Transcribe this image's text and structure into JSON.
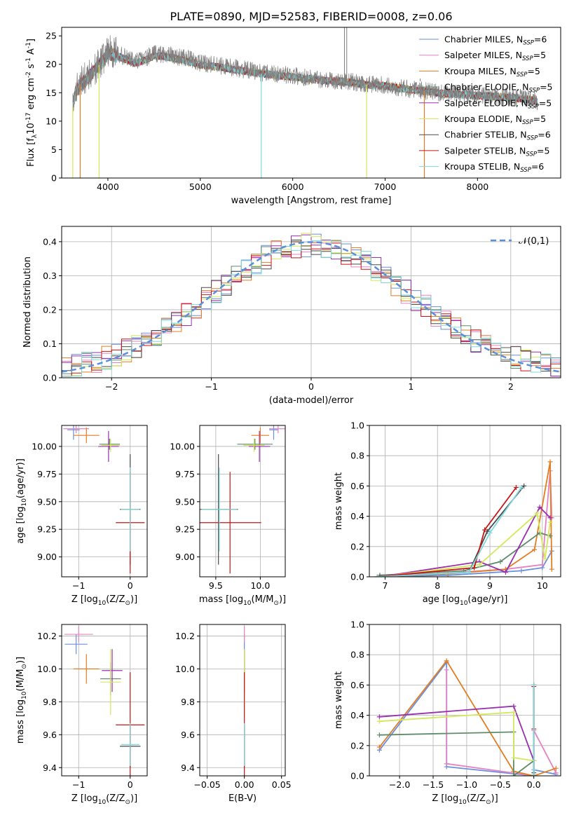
{
  "title": "PLATE=0890, MJD=52583, FIBERID=0008, z=0.06",
  "models": [
    {
      "name": "Chabrier MILES, N$_{SSP}$=6",
      "label": "Chabrier MILES, N",
      "n": "6",
      "color": "#6a8fdc"
    },
    {
      "name": "Salpeter MILES, N$_{SSP}$=5",
      "label": "Salpeter MILES, N",
      "n": "5",
      "color": "#e583c2"
    },
    {
      "name": "Kroupa MILES, N$_{SSP}$=5",
      "label": "Kroupa MILES, N",
      "n": "5",
      "color": "#e27d21"
    },
    {
      "name": "Chabrier ELODIE, N$_{SSP}$=5",
      "label": "Chabrier ELODIE, N",
      "n": "5",
      "color": "#5f8c6a"
    },
    {
      "name": "Salpeter ELODIE, N$_{SSP}$=5",
      "label": "Salpeter ELODIE, N",
      "n": "5",
      "color": "#9a2fae"
    },
    {
      "name": "Kroupa ELODIE, N$_{SSP}$=5",
      "label": "Kroupa ELODIE, N",
      "n": "5",
      "color": "#d3e85a"
    },
    {
      "name": "Chabrier STELIB, N$_{SSP}$=6",
      "label": "Chabrier STELIB, N",
      "n": "6",
      "color": "#4a4a4a"
    },
    {
      "name": "Salpeter STELIB, N$_{SSP}$=5",
      "label": "Salpeter STELIB, N",
      "n": "5",
      "color": "#c81414"
    },
    {
      "name": "Kroupa STELIB, N$_{SSP}$=6",
      "label": "Kroupa STELIB, N",
      "n": "6",
      "color": "#7fd8dc"
    }
  ],
  "chart_data": [
    {
      "id": "spectrum",
      "type": "line",
      "xlabel": "wavelength [Angstrom, rest frame]",
      "ylabel": "Flux [f$_\\lambda$10$^{-17}$ erg cm$^{-2}$ s$^{-1}$ A$^{-1}$]",
      "xlim": [
        3500,
        8900
      ],
      "ylim": [
        0,
        26.5
      ],
      "xticks": [
        4000,
        5000,
        6000,
        7000,
        8000
      ],
      "yticks": [
        0,
        5,
        10,
        15,
        20,
        25
      ],
      "grid": false,
      "legend": "top-right",
      "data_color": "#808080",
      "data_continuum": {
        "x": [
          3620,
          3650,
          3700,
          3750,
          3800,
          3850,
          3900,
          3950,
          4000,
          4100,
          4200,
          4300,
          4400,
          4500,
          4600,
          4700,
          4800,
          4900,
          5000,
          5200,
          5400,
          5600,
          5800,
          6000,
          6200,
          6400,
          6600,
          6800,
          7000,
          7200,
          7400,
          7600,
          7800,
          8000,
          8200,
          8400,
          8500,
          8600,
          8650
        ],
        "y": [
          13.5,
          16,
          17,
          17.5,
          18.5,
          19,
          20,
          21,
          22.5,
          21.8,
          21.2,
          20.5,
          21,
          21.8,
          21.8,
          21.5,
          21.2,
          20.8,
          20.2,
          19.8,
          19.3,
          18.7,
          18.3,
          18,
          17.6,
          17.2,
          17,
          16.5,
          16.3,
          15.8,
          15.4,
          15,
          14.8,
          14.6,
          14.4,
          14.2,
          14,
          13.8,
          13.5
        ]
      },
      "model_continuum": {
        "x": [
          3620,
          3650,
          3700,
          3750,
          3800,
          3850,
          3900,
          3950,
          4000,
          4100,
          4200,
          4300,
          4400,
          4500,
          4600,
          4700,
          4800,
          4900,
          5000,
          5200,
          5400,
          5600,
          5800,
          6000,
          6200,
          6400,
          6600,
          6800,
          7000,
          7200,
          7400,
          7600,
          7800,
          8000,
          8200,
          8400,
          8500,
          8600,
          8650
        ],
        "y": [
          12.5,
          15,
          16.5,
          17,
          18,
          18.7,
          19.8,
          20.6,
          22,
          21.5,
          20.8,
          20.2,
          20.7,
          21.5,
          21.4,
          21.1,
          20.8,
          20.4,
          19.9,
          19.5,
          19,
          18.5,
          18.1,
          17.8,
          17.4,
          17.1,
          16.9,
          16.4,
          16.2,
          15.7,
          15.3,
          14.9,
          14.7,
          14.5,
          14.3,
          14.1,
          13.9,
          13.7,
          13.4
        ]
      },
      "masked_dips": [
        {
          "x": 3620,
          "color": "#d3e85a"
        },
        {
          "x": 3700,
          "color": "#e27d21"
        },
        {
          "x": 3905,
          "color": "#d3e85a"
        },
        {
          "x": 5660,
          "color": "#7fd8dc"
        },
        {
          "x": 6800,
          "color": "#d3e85a"
        },
        {
          "x": 7425,
          "color": "#e27d21"
        }
      ],
      "spikes": [
        {
          "x": 6560,
          "y": 26.5
        },
        {
          "x": 6585,
          "y": 26.5
        },
        {
          "x": 7380,
          "y": 17.5
        }
      ]
    },
    {
      "id": "residuals",
      "type": "line",
      "xlabel": "(data-model)/error",
      "ylabel": "Normed distribution",
      "xlim": [
        -2.5,
        2.5
      ],
      "ylim": [
        0,
        0.445
      ],
      "xticks": [
        -2,
        -1,
        0,
        1,
        2
      ],
      "yticks": [
        0.0,
        0.1,
        0.2,
        0.3,
        0.4
      ],
      "grid": true,
      "legend": "top-right",
      "gaussian_label": "$\\mathcal{N}(0,1)$",
      "gaussian_color": "#5b8edb",
      "bin_width": 0.1,
      "bin_start": -2.5
    },
    {
      "id": "age_vs_Z",
      "type": "scatter",
      "xlabel": "Z [log$_{10}$(Z/Z$_\\odot$)]",
      "ylabel": "age  [log$_{10}$(age/yr)]",
      "xlim": [
        -1.33,
        0.33
      ],
      "ylim": [
        8.82,
        10.19
      ],
      "xticks": [
        -1,
        0
      ],
      "yticks": [
        9.0,
        9.25,
        9.5,
        9.75,
        10.0
      ],
      "grid": true,
      "points": [
        {
          "model": 0,
          "x": -1.1,
          "y": 10.15,
          "dx": 0.12,
          "dy": 0.09
        },
        {
          "model": 1,
          "x": -1.05,
          "y": 10.16,
          "dx": 0.25,
          "dy": 0.04
        },
        {
          "model": 2,
          "x": -0.85,
          "y": 10.1,
          "dx": 0.25,
          "dy": 0.07
        },
        {
          "model": 3,
          "x": -0.4,
          "y": 10.02,
          "dx": 0.2,
          "dy": 0.05
        },
        {
          "model": 4,
          "x": -0.42,
          "y": 10.0,
          "dx": 0.2,
          "dy": 0.14
        },
        {
          "model": 5,
          "x": -0.38,
          "y": 10.01,
          "dx": 0.18,
          "dy": 0.06
        },
        {
          "model": 6,
          "x": 0.0,
          "y": 9.43,
          "dx": 0.2,
          "dy": 0.5
        },
        {
          "model": 7,
          "x": 0.0,
          "y": 9.31,
          "dx": 0.28,
          "dy": 0.46
        },
        {
          "model": 8,
          "x": 0.0,
          "y": 9.43,
          "dx": 0.18,
          "dy": 0.38
        }
      ]
    },
    {
      "id": "age_vs_mass",
      "type": "scatter",
      "xlabel": "mass [log$_{10}$(M/M$_\\odot$)]",
      "ylabel": "",
      "xlim": [
        9.32,
        10.28
      ],
      "ylim": [
        8.82,
        10.19
      ],
      "xticks": [
        9.5,
        10.0
      ],
      "yticks": [
        9.0,
        9.25,
        9.5,
        9.75,
        10.0
      ],
      "grid": true,
      "points": [
        {
          "model": 0,
          "x": 10.15,
          "y": 10.15,
          "dx": 0.05,
          "dy": 0.09
        },
        {
          "model": 1,
          "x": 10.2,
          "y": 10.16,
          "dx": 0.1,
          "dy": 0.04
        },
        {
          "model": 2,
          "x": 10.0,
          "y": 10.1,
          "dx": 0.1,
          "dy": 0.07
        },
        {
          "model": 3,
          "x": 9.94,
          "y": 10.02,
          "dx": 0.2,
          "dy": 0.05
        },
        {
          "model": 4,
          "x": 9.99,
          "y": 10.0,
          "dx": 0.12,
          "dy": 0.14
        },
        {
          "model": 5,
          "x": 9.93,
          "y": 10.01,
          "dx": 0.12,
          "dy": 0.06
        },
        {
          "model": 6,
          "x": 9.53,
          "y": 9.43,
          "dx": 0.22,
          "dy": 0.5
        },
        {
          "model": 7,
          "x": 9.66,
          "y": 9.31,
          "dx": 0.35,
          "dy": 0.46
        },
        {
          "model": 8,
          "x": 9.54,
          "y": 9.43,
          "dx": 0.2,
          "dy": 0.38
        }
      ]
    },
    {
      "id": "weight_vs_age",
      "type": "line",
      "xlabel": "age  [log$_{10}$(age/yr)]",
      "ylabel": "mass weight",
      "xlim": [
        6.7,
        10.35
      ],
      "ylim": [
        0.0,
        1.0
      ],
      "xticks": [
        7,
        8,
        9,
        10
      ],
      "yticks": [
        0.0,
        0.2,
        0.4,
        0.6,
        0.8,
        1.0
      ],
      "grid": true,
      "series": [
        {
          "model": 0,
          "x": [
            6.9,
            8.2,
            9.6,
            10.0,
            10.18
          ],
          "y": [
            0.0,
            0.01,
            0.04,
            0.06,
            0.17
          ]
        },
        {
          "model": 1,
          "x": [
            6.9,
            8.0,
            9.3,
            10.0,
            10.15,
            10.18
          ],
          "y": [
            0.01,
            0.02,
            0.05,
            0.08,
            0.7,
            0.39
          ]
        },
        {
          "model": 2,
          "x": [
            6.85,
            8.2,
            9.3,
            9.85,
            10.15,
            10.18
          ],
          "y": [
            0.0,
            0.02,
            0.05,
            0.18,
            0.76,
            0.05
          ]
        },
        {
          "model": 3,
          "x": [
            6.9,
            8.5,
            9.2,
            9.95,
            10.15
          ],
          "y": [
            0.01,
            0.04,
            0.1,
            0.29,
            0.27
          ]
        },
        {
          "model": 4,
          "x": [
            6.9,
            8.8,
            9.3,
            9.95,
            10.15
          ],
          "y": [
            0.0,
            0.1,
            0.03,
            0.46,
            0.39
          ]
        },
        {
          "model": 5,
          "x": [
            6.9,
            8.8,
            9.9,
            10.05,
            10.15
          ],
          "y": [
            0.0,
            0.08,
            0.42,
            0.12,
            0.36
          ]
        },
        {
          "model": 6,
          "x": [
            6.9,
            8.6,
            8.95,
            9.65
          ],
          "y": [
            0.0,
            0.03,
            0.3,
            0.6
          ]
        },
        {
          "model": 7,
          "x": [
            6.85,
            8.7,
            8.9,
            9.5
          ],
          "y": [
            0.0,
            0.06,
            0.31,
            0.59
          ]
        },
        {
          "model": 8,
          "x": [
            6.85,
            8.6,
            9.0,
            9.6
          ],
          "y": [
            0.0,
            0.03,
            0.29,
            0.59
          ]
        }
      ]
    },
    {
      "id": "mass_vs_Z",
      "type": "scatter",
      "xlabel": "Z [log$_{10}$(Z/Z$_\\odot$)]",
      "ylabel": "mass [log$_{10}$(M/M$_\\odot$)]",
      "xlim": [
        -1.33,
        0.33
      ],
      "ylim": [
        9.35,
        10.27
      ],
      "xticks": [
        -1,
        0
      ],
      "yticks": [
        9.4,
        9.6,
        9.8,
        10.0,
        10.2
      ],
      "grid": true,
      "points": [
        {
          "model": 0,
          "x": -1.05,
          "y": 10.15,
          "dx": 0.22,
          "dy": 0.06
        },
        {
          "model": 1,
          "x": -1.0,
          "y": 10.21,
          "dx": 0.28,
          "dy": 0.05
        },
        {
          "model": 2,
          "x": -0.85,
          "y": 10.0,
          "dx": 0.25,
          "dy": 0.09
        },
        {
          "model": 3,
          "x": -0.38,
          "y": 9.94,
          "dx": 0.2,
          "dy": 0.1
        },
        {
          "model": 4,
          "x": -0.35,
          "y": 9.99,
          "dx": 0.2,
          "dy": 0.13
        },
        {
          "model": 5,
          "x": -0.38,
          "y": 9.92,
          "dx": 0.2,
          "dy": 0.2
        },
        {
          "model": 6,
          "x": 0.0,
          "y": 9.53,
          "dx": 0.2,
          "dy": 0.13
        },
        {
          "model": 7,
          "x": 0.0,
          "y": 9.66,
          "dx": 0.28,
          "dy": 0.32
        },
        {
          "model": 8,
          "x": 0.0,
          "y": 9.54,
          "dx": 0.18,
          "dy": 0.13
        }
      ]
    },
    {
      "id": "mass_vs_EBV",
      "type": "scatter",
      "xlabel": "E(B-V)",
      "ylabel": "",
      "xlim": [
        -0.06,
        0.055
      ],
      "ylim": [
        9.35,
        10.27
      ],
      "xticks": [
        -0.05,
        0.0,
        0.05
      ],
      "yticks": [
        9.4,
        9.6,
        9.8,
        10.0,
        10.2
      ],
      "grid": true,
      "points": [
        {
          "model": 0,
          "x": 0.0,
          "y": 10.15,
          "dx": 0.0,
          "dy": 0.06
        },
        {
          "model": 1,
          "x": 0.0,
          "y": 10.21,
          "dx": 0.0,
          "dy": 0.05
        },
        {
          "model": 2,
          "x": 0.0,
          "y": 10.0,
          "dx": 0.0,
          "dy": 0.09
        },
        {
          "model": 3,
          "x": 0.0,
          "y": 9.94,
          "dx": 0.0,
          "dy": 0.1
        },
        {
          "model": 4,
          "x": 0.0,
          "y": 9.99,
          "dx": 0.0,
          "dy": 0.13
        },
        {
          "model": 5,
          "x": 0.0,
          "y": 9.92,
          "dx": 0.0,
          "dy": 0.2
        },
        {
          "model": 6,
          "x": 0.0,
          "y": 9.53,
          "dx": 0.0,
          "dy": 0.13
        },
        {
          "model": 7,
          "x": 0.0,
          "y": 9.66,
          "dx": 0.0,
          "dy": 0.32
        },
        {
          "model": 8,
          "x": 0.0,
          "y": 9.54,
          "dx": 0.0,
          "dy": 0.13
        }
      ]
    },
    {
      "id": "weight_vs_Z",
      "type": "line",
      "xlabel": "Z [log$_{10}$(Z/Z$_\\odot$)]",
      "ylabel": "mass weight",
      "xlim": [
        -2.45,
        0.4
      ],
      "ylim": [
        0.0,
        1.0
      ],
      "xticks": [
        -2.0,
        -1.5,
        -1.0,
        -0.5,
        0.0
      ],
      "yticks": [
        0.0,
        0.2,
        0.4,
        0.6,
        0.8,
        1.0
      ],
      "grid": true,
      "series": [
        {
          "model": 0,
          "x": [
            -2.3,
            -1.3,
            -1.3,
            0.0,
            0.0,
            0.33
          ],
          "y": [
            0.17,
            0.75,
            0.06,
            0.0,
            0.04,
            0.01
          ]
        },
        {
          "model": 1,
          "x": [
            -1.3,
            -1.3,
            0.0,
            0.0,
            0.33
          ],
          "y": [
            0.7,
            0.08,
            0.0,
            0.3,
            0.02
          ]
        },
        {
          "model": 2,
          "x": [
            -2.3,
            -1.3,
            -0.3,
            0.0,
            0.33
          ],
          "y": [
            0.19,
            0.76,
            0.03,
            0.0,
            0.05
          ]
        },
        {
          "model": 3,
          "x": [
            -2.3,
            -0.3,
            -0.3,
            0.0
          ],
          "y": [
            0.27,
            0.29,
            0.0,
            0.1
          ]
        },
        {
          "model": 4,
          "x": [
            -2.3,
            -0.3,
            0.0,
            0.0
          ],
          "y": [
            0.39,
            0.46,
            0.1,
            0.0
          ]
        },
        {
          "model": 5,
          "x": [
            -2.3,
            -0.3,
            -0.3,
            0.0
          ],
          "y": [
            0.36,
            0.42,
            0.12,
            0.1
          ]
        },
        {
          "model": 6,
          "x": [
            0.0,
            0.0,
            0.0
          ],
          "y": [
            0.6,
            0.02,
            0.0
          ]
        },
        {
          "model": 7,
          "x": [
            0.0,
            0.0
          ],
          "y": [
            0.59,
            0.31
          ]
        },
        {
          "model": 8,
          "x": [
            0.0,
            0.0,
            0.0
          ],
          "y": [
            0.6,
            0.0,
            0.04
          ]
        }
      ]
    }
  ]
}
